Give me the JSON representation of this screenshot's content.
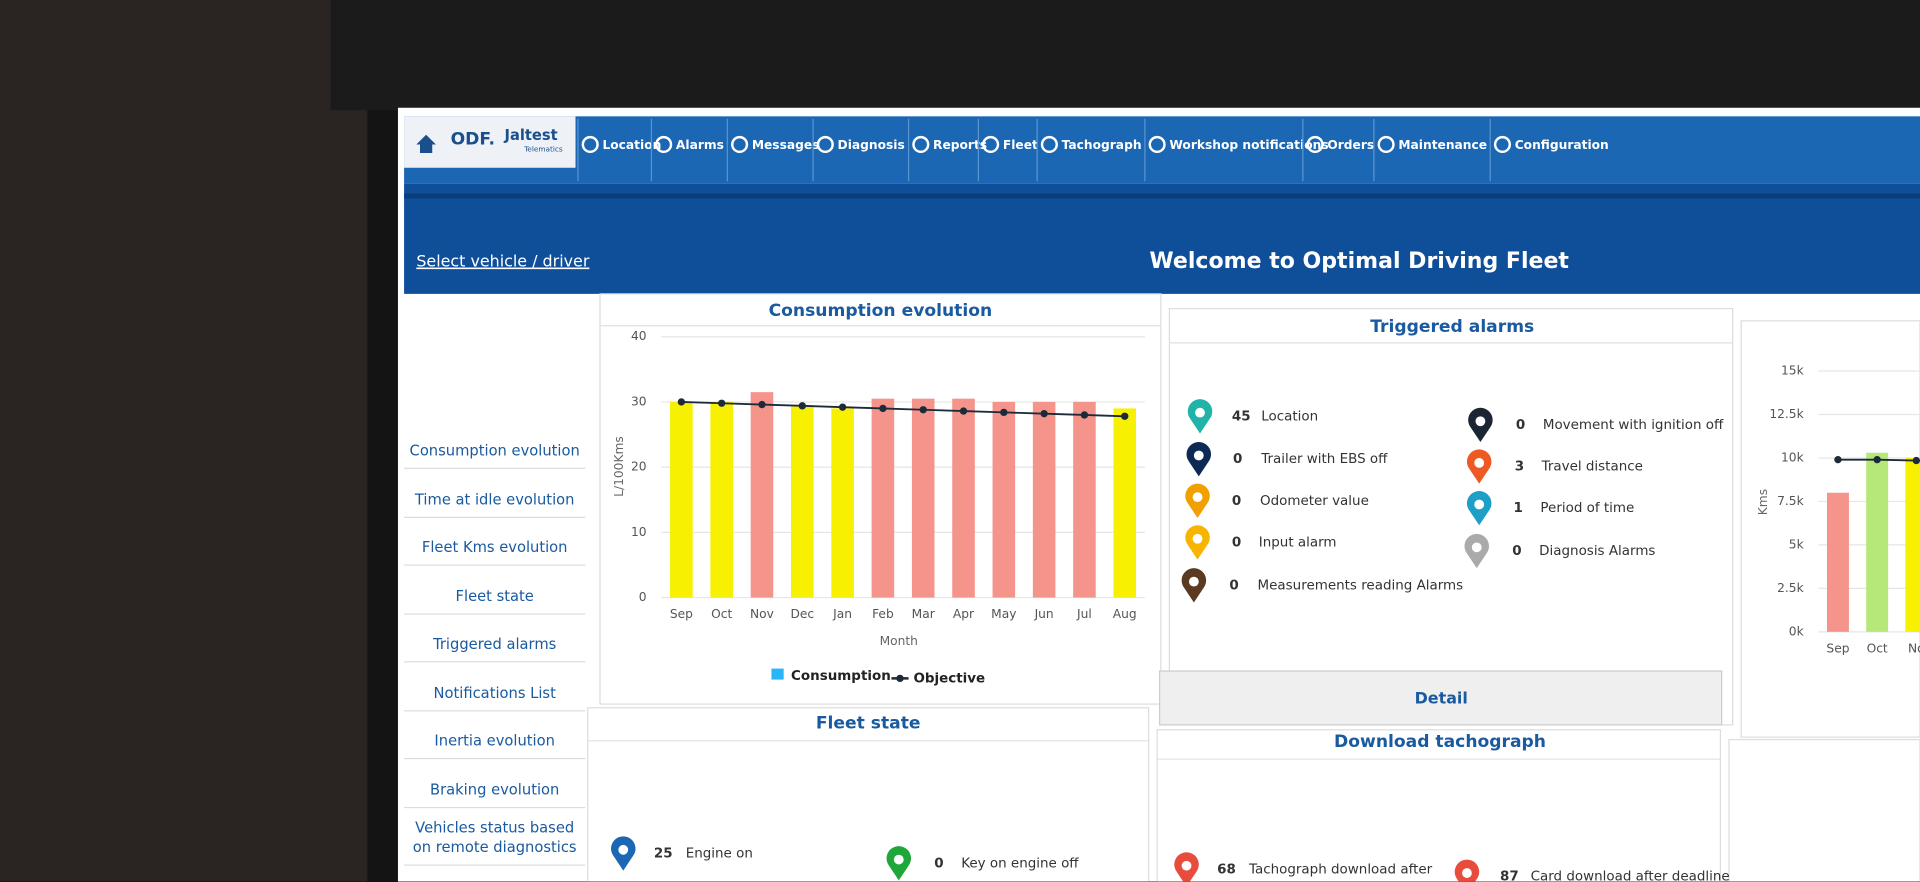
{
  "nav": {
    "logo": "ODF.",
    "brand": "Jaltest",
    "brand_sub": "Telematics",
    "items": [
      "Location",
      "Alarms",
      "Messages",
      "Diagnosis",
      "Reports",
      "Fleet",
      "Tachograph",
      "Workshop notifications",
      "Orders",
      "Maintenance",
      "Configuration"
    ]
  },
  "header": {
    "link": "Select vehicle / driver",
    "title": "Welcome to Optimal Driving Fleet"
  },
  "sidebar": [
    "Consumption evolution",
    "Time at idle evolution",
    "Fleet Kms evolution",
    "Fleet state",
    "Triggered alarms",
    "Notifications List",
    "Inertia evolution",
    "Braking evolution",
    "Vehicles status based on remote diagnostics"
  ],
  "consumption_chart": {
    "type": "bar",
    "title": "Consumption evolution",
    "x_label": "Month",
    "y_label": "L/100Kms",
    "categories": [
      "Sep",
      "Oct",
      "Nov",
      "Dec",
      "Jan",
      "Feb",
      "Mar",
      "Apr",
      "May",
      "Jun",
      "Jul",
      "Aug"
    ],
    "series": [
      {
        "name": "Consumption",
        "color": "#29b6f6",
        "values": [
          30,
          30,
          31.5,
          29.5,
          29,
          30.5,
          30.5,
          30.5,
          30,
          30,
          30,
          29
        ],
        "bar_colors": [
          "#f7f000",
          "#f7f000",
          "#f4948a",
          "#f7f000",
          "#f7f000",
          "#f4948a",
          "#f4948a",
          "#f4948a",
          "#f4948a",
          "#f4948a",
          "#f4948a",
          "#f7f000"
        ]
      },
      {
        "name": "Objective",
        "color": "#1c2a3a",
        "values": [
          30,
          29.8,
          29.6,
          29.4,
          29.2,
          29,
          28.8,
          28.6,
          28.4,
          28.2,
          28,
          27.8
        ]
      }
    ],
    "ylim": [
      0,
      40
    ],
    "yticks": [
      0,
      10,
      20,
      30,
      40
    ]
  },
  "alarms": {
    "title": "Triggered alarms",
    "button": "Detail",
    "items": [
      {
        "count": 45,
        "label": "Location"
      },
      {
        "count": 0,
        "label": "Trailer with EBS off"
      },
      {
        "count": 0,
        "label": "Odometer value"
      },
      {
        "count": 0,
        "label": "Input alarm"
      },
      {
        "count": 0,
        "label": "Measurements reading Alarms"
      },
      {
        "count": 0,
        "label": "Movement with ignition off"
      },
      {
        "count": 3,
        "label": "Travel distance"
      },
      {
        "count": 1,
        "label": "Period of time"
      },
      {
        "count": 0,
        "label": "Diagnosis Alarms"
      }
    ]
  },
  "kms_chart": {
    "type": "bar",
    "y_label": "Kms",
    "categories": [
      "Sep",
      "Oct",
      "No"
    ],
    "series": [
      {
        "values": [
          8000,
          10300,
          10000
        ],
        "bar_colors": [
          "#f4948a",
          "#b5e878",
          "#f7f000"
        ]
      },
      {
        "color": "#1c2a3a",
        "values": [
          9900,
          9900,
          9850
        ]
      }
    ],
    "ylim": [
      0,
      15000
    ],
    "yticks": [
      {
        "value": 0,
        "label": "0k"
      },
      {
        "value": 2500,
        "label": "2.5k"
      },
      {
        "value": 5000,
        "label": "5k"
      },
      {
        "value": 7500,
        "label": "7.5k"
      },
      {
        "value": 10000,
        "label": "10k"
      },
      {
        "value": 12500,
        "label": "12.5k"
      },
      {
        "value": 15000,
        "label": "15k"
      }
    ]
  },
  "fleet_state": {
    "title": "Fleet state",
    "items": [
      {
        "count": 25,
        "label": "Engine on"
      },
      {
        "count": 0,
        "label": "Key on engine off"
      }
    ]
  },
  "tachograph": {
    "title": "Download tachograph",
    "items": [
      {
        "count": 68,
        "label": "Tachograph download after"
      },
      {
        "count": 87,
        "label": "Card download after deadline"
      }
    ]
  }
}
